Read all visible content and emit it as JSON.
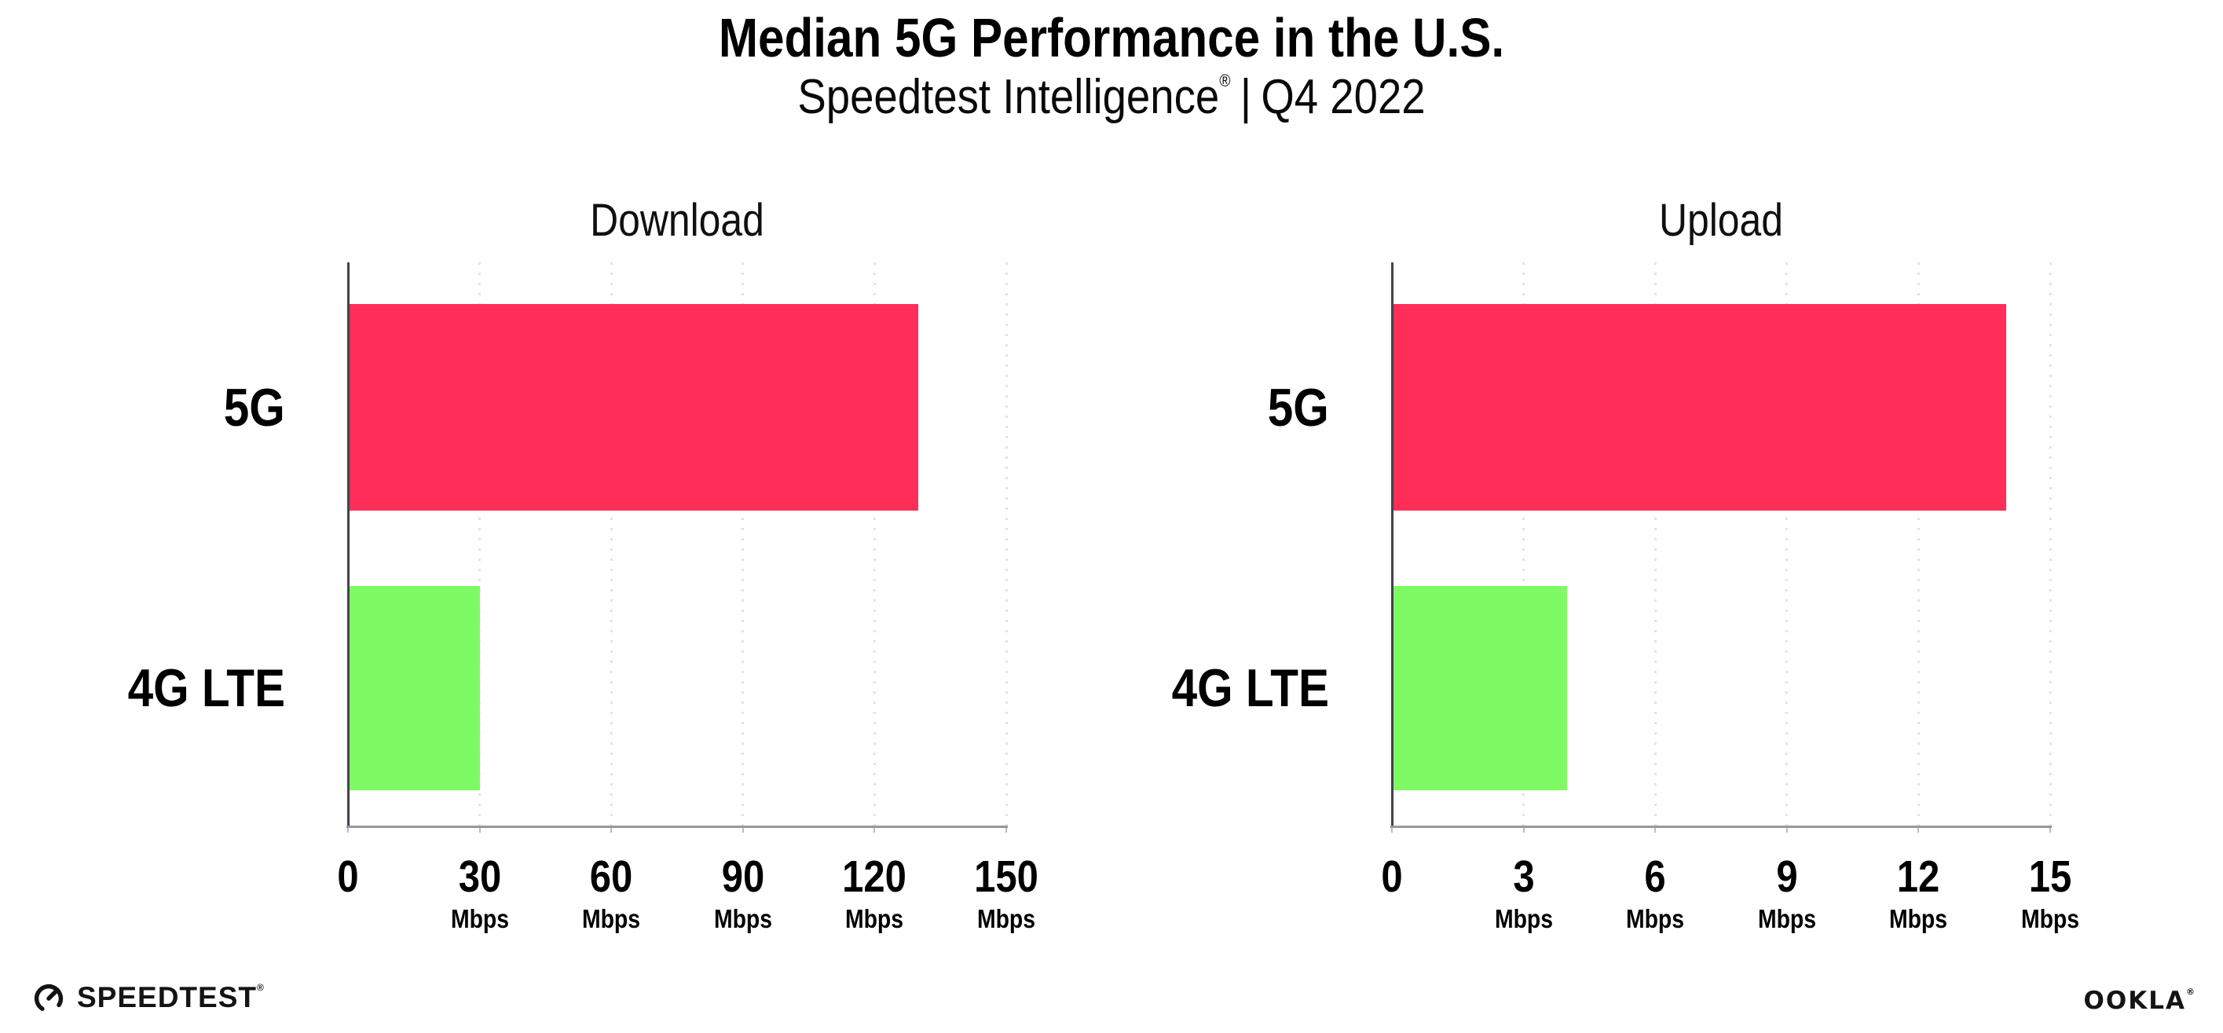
{
  "header": {
    "title": "Median 5G Performance in the U.S.",
    "subtitle_brand": "Speedtest Intelligence",
    "subtitle_reg": "®",
    "subtitle_separator": "|",
    "subtitle_period": "Q4 2022"
  },
  "chart_data": [
    {
      "type": "bar",
      "orientation": "horizontal",
      "title": "Download",
      "categories": [
        "5G",
        "4G LTE"
      ],
      "values": [
        130,
        30
      ],
      "unit": "Mbps",
      "xlim": [
        0,
        150
      ],
      "xticks": [
        0,
        30,
        60,
        90,
        120,
        150
      ],
      "tick_unit_label": "Mbps",
      "bar_colors": [
        "#ff2e59",
        "#7efb64"
      ],
      "grid": "vertical-dotted",
      "legend": "none"
    },
    {
      "type": "bar",
      "orientation": "horizontal",
      "title": "Upload",
      "categories": [
        "5G",
        "4G LTE"
      ],
      "values": [
        14,
        4
      ],
      "unit": "Mbps",
      "xlim": [
        0,
        15
      ],
      "xticks": [
        0,
        3,
        6,
        9,
        12,
        15
      ],
      "tick_unit_label": "Mbps",
      "bar_colors": [
        "#ff2e59",
        "#7efb64"
      ],
      "grid": "vertical-dotted",
      "legend": "none"
    }
  ],
  "footer": {
    "speedtest_logo_text": "SPEEDTEST",
    "speedtest_reg": "®",
    "ookla_logo_text": "OOKLA",
    "ookla_reg": "®"
  },
  "colors": {
    "bar_5g": "#ff2e59",
    "bar_4g_lte": "#7efb64",
    "gridline": "#e2e2ed",
    "x_axis_line": "#97979d",
    "y_axis_spine": "#43434b",
    "text": "#000000"
  }
}
